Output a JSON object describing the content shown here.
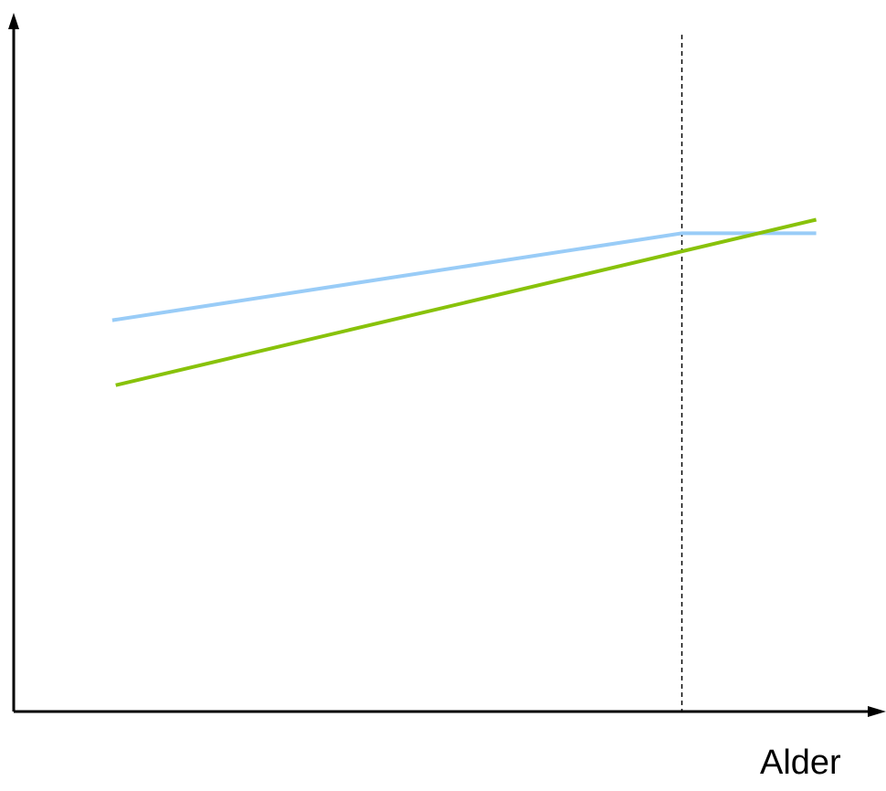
{
  "chart_data": {
    "type": "line",
    "xlabel": "Alder",
    "ylabel": "",
    "title": "",
    "xlim": [
      0,
      10
    ],
    "ylim": [
      0,
      10
    ],
    "grid": false,
    "legend": "none",
    "reference_line": {
      "x": 7.66,
      "style": "dashed",
      "color": "#000000"
    },
    "series": [
      {
        "color": "#99ccf7",
        "x": [
          1.13,
          7.66,
          9.2
        ],
        "y": [
          5.72,
          6.99,
          6.99
        ]
      },
      {
        "color": "#88c20a",
        "x": [
          1.17,
          9.2
        ],
        "y": [
          4.77,
          7.19
        ]
      }
    ]
  }
}
